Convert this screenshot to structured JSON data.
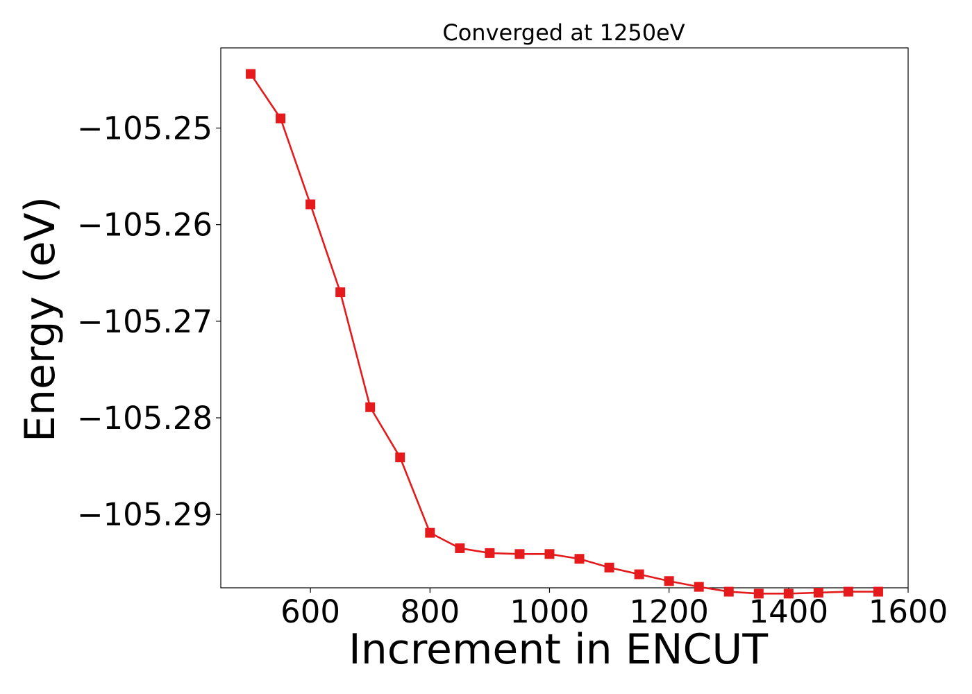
{
  "chart_data": {
    "type": "line",
    "title": "Converged at 1250eV",
    "xlabel": "Increment in ENCUT",
    "ylabel": "Energy (eV)",
    "xlim": [
      450,
      1600
    ],
    "ylim": [
      -105.2976,
      -105.2417
    ],
    "xticks": [
      600,
      800,
      1000,
      1200,
      1400,
      1600
    ],
    "xtick_labels": [
      "600",
      "800",
      "1000",
      "1200",
      "1400",
      "1600"
    ],
    "yticks": [
      -105.25,
      -105.26,
      -105.27,
      -105.28,
      -105.29
    ],
    "ytick_labels": [
      "−105.25",
      "−105.26",
      "−105.27",
      "−105.28",
      "−105.29"
    ],
    "grid": false,
    "legend": "none",
    "series": [
      {
        "color": "#e41a1c",
        "marker": "square",
        "x": [
          500,
          550,
          600,
          650,
          700,
          750,
          800,
          850,
          900,
          950,
          1000,
          1050,
          1100,
          1150,
          1200,
          1250,
          1300,
          1350,
          1400,
          1450,
          1500,
          1550
        ],
        "y": [
          -105.2444,
          -105.249,
          -105.2579,
          -105.267,
          -105.2789,
          -105.2841,
          -105.2919,
          -105.2935,
          -105.294,
          -105.2941,
          -105.2941,
          -105.2946,
          -105.2955,
          -105.2962,
          -105.2969,
          -105.2975,
          -105.298,
          -105.2982,
          -105.2982,
          -105.2981,
          -105.298,
          -105.298
        ]
      }
    ]
  }
}
